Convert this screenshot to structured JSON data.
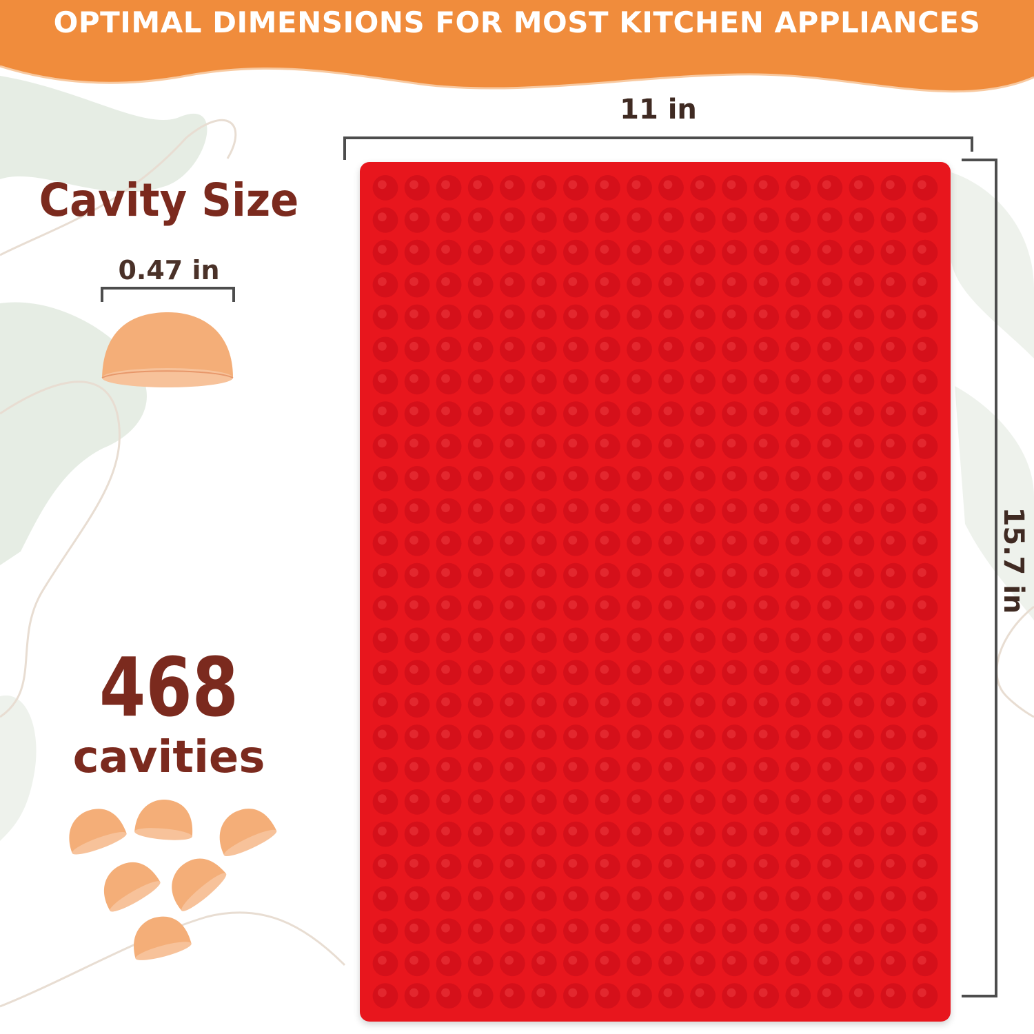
{
  "banner": {
    "title": "OPTIMAL DIMENSIONS FOR MOST KITCHEN APPLIANCES",
    "color": "#f08c3c"
  },
  "dimensions": {
    "width": "11 in",
    "height": "15.7 in"
  },
  "cavity": {
    "title": "Cavity Size",
    "diameter": "0.47 in",
    "count": "468",
    "count_unit": "cavities",
    "shape_icon": "half-sphere-icon",
    "shape_color": "#f4ae78"
  },
  "mat": {
    "color": "#e8161d",
    "cavity_color": "#d5101a",
    "columns": 18,
    "rows": 26
  }
}
